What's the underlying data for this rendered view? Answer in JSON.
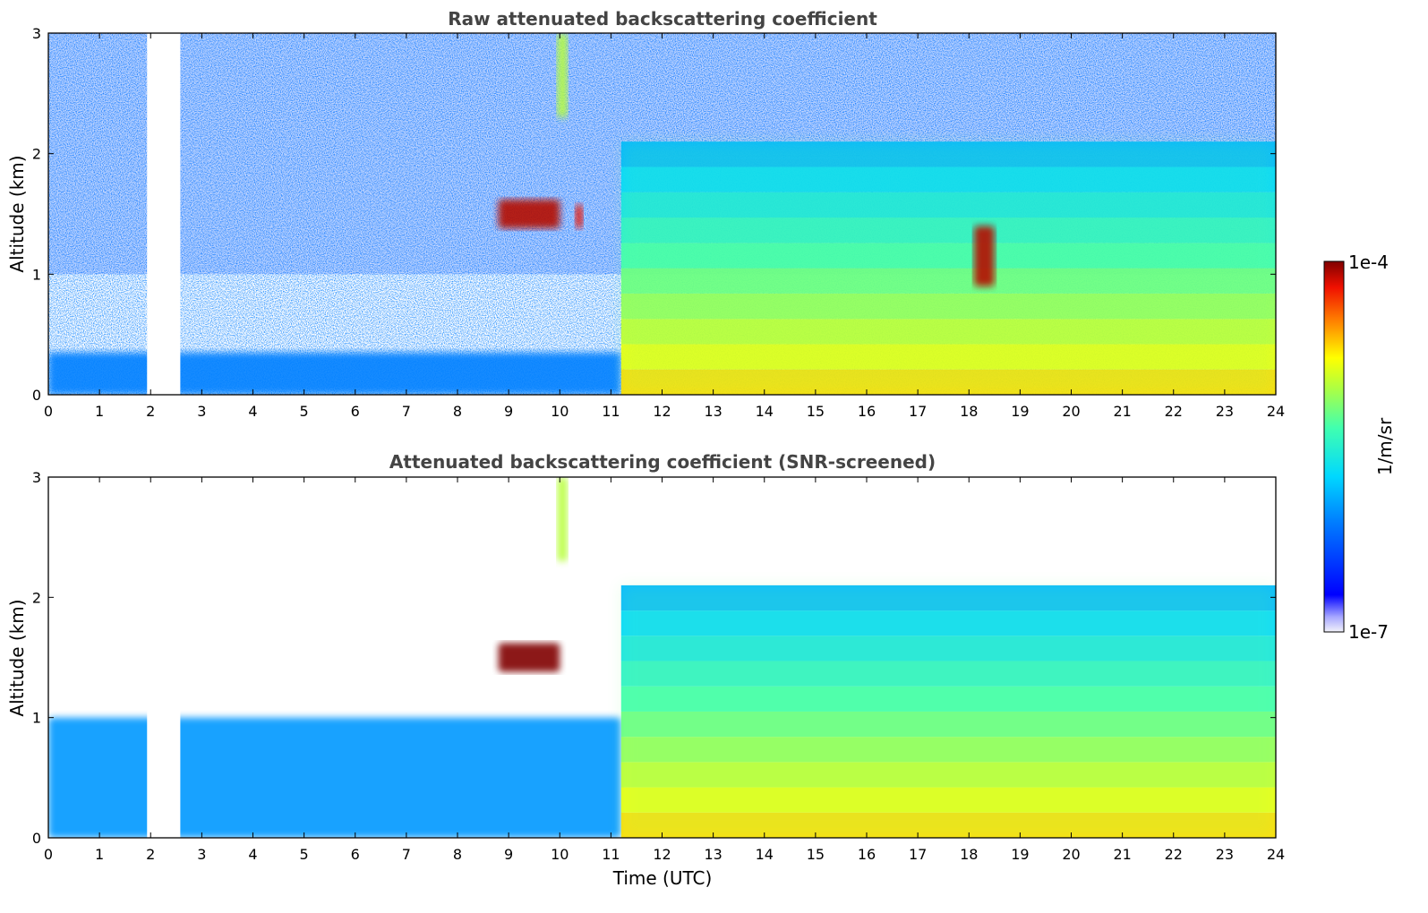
{
  "chart_data": [
    {
      "type": "heatmap",
      "title": "Raw attenuated backscattering coefficient",
      "xlabel": "",
      "ylabel": "Altitude (km)",
      "xlim": [
        0,
        24
      ],
      "ylim": [
        0,
        3
      ],
      "x_ticks": [
        "0",
        "1",
        "2",
        "3",
        "4",
        "5",
        "6",
        "7",
        "8",
        "9",
        "10",
        "11",
        "12",
        "13",
        "14",
        "15",
        "16",
        "17",
        "18",
        "19",
        "20",
        "21",
        "22",
        "23",
        "24"
      ],
      "y_ticks": [
        "0",
        "1",
        "2",
        "3"
      ],
      "data_gap_utc": [
        1.93,
        2.58
      ],
      "features": [
        {
          "label": "noisy background",
          "time_utc": [
            0,
            24
          ],
          "altitude_km": [
            1.0,
            3.0
          ],
          "log10_value": -6.3
        },
        {
          "label": "aerosol layer",
          "time_utc": [
            0,
            11.2
          ],
          "altitude_km": [
            0,
            0.35
          ],
          "log10_value": -6.1
        },
        {
          "label": "cloud",
          "time_utc": [
            8.8,
            10.0
          ],
          "altitude_km": [
            1.38,
            1.62
          ],
          "log10_value": -4.1
        },
        {
          "label": "cloud",
          "time_utc": [
            10.3,
            10.45
          ],
          "altitude_km": [
            1.38,
            1.58
          ],
          "log10_value": -4.2
        },
        {
          "label": "high plume",
          "time_utc": [
            9.95,
            10.15
          ],
          "altitude_km": [
            2.3,
            3.0
          ],
          "log10_value": -5.0
        },
        {
          "label": "boundary layer",
          "time_utc": [
            11.2,
            24
          ],
          "altitude_km": [
            0,
            2.1
          ],
          "log10_value": -4.7
        },
        {
          "label": "residual cloud",
          "time_utc": [
            18.1,
            18.5
          ],
          "altitude_km": [
            0.9,
            1.4
          ],
          "log10_value": -4.1
        }
      ]
    },
    {
      "type": "heatmap",
      "title": "Attenuated backscattering coefficient (SNR-screened)",
      "xlabel": "Time (UTC)",
      "ylabel": "Altitude (km)",
      "xlim": [
        0,
        24
      ],
      "ylim": [
        0,
        3
      ],
      "x_ticks": [
        "0",
        "1",
        "2",
        "3",
        "4",
        "5",
        "6",
        "7",
        "8",
        "9",
        "10",
        "11",
        "12",
        "13",
        "14",
        "15",
        "16",
        "17",
        "18",
        "19",
        "20",
        "21",
        "22",
        "23",
        "24"
      ],
      "y_ticks": [
        "0",
        "1",
        "2",
        "3"
      ],
      "data_gap_utc": [
        1.93,
        2.58
      ],
      "features": [
        {
          "label": "aerosol layer",
          "time_utc": [
            0,
            11.2
          ],
          "altitude_km": [
            0,
            1.0
          ],
          "log10_value": -6.0
        },
        {
          "label": "cloud",
          "time_utc": [
            8.8,
            10.0
          ],
          "altitude_km": [
            1.38,
            1.62
          ],
          "log10_value": -3.9
        },
        {
          "label": "high plume",
          "time_utc": [
            9.95,
            10.15
          ],
          "altitude_km": [
            2.3,
            3.0
          ],
          "log10_value": -5.0
        },
        {
          "label": "boundary layer",
          "time_utc": [
            11.2,
            24
          ],
          "altitude_km": [
            0,
            2.1
          ],
          "log10_value": -4.7
        }
      ]
    }
  ],
  "colorbar": {
    "max_label": "1e-4",
    "min_label": "1e-7",
    "unit_label": "1/m/sr",
    "range_log10": [
      -7,
      -4
    ],
    "colormap": "jet"
  }
}
